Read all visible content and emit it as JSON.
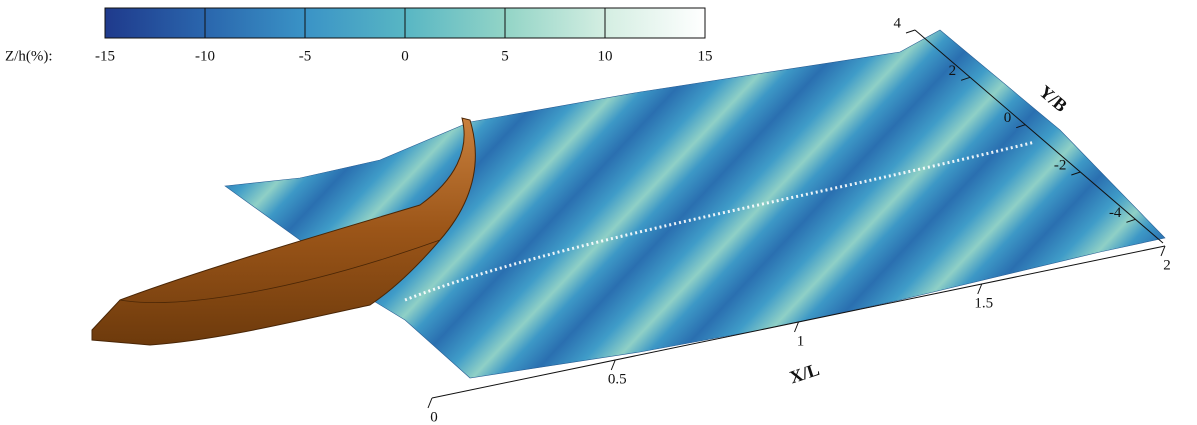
{
  "chart_data": {
    "type": "surface",
    "colorbar": {
      "label": "Z/h(%):",
      "lim": [
        -15,
        15
      ],
      "ticks": [
        -15,
        -10,
        -5,
        0,
        5,
        10,
        15
      ],
      "colormap": [
        "#1f3a8c",
        "#2a66ad",
        "#3a93c6",
        "#58b6c4",
        "#92d4c6",
        "#d4eee2",
        "#ffffff"
      ]
    },
    "xlabel": "X/L",
    "xlim": [
      0,
      2
    ],
    "xticks": [
      0,
      0.5,
      1,
      1.5,
      2
    ],
    "ylabel": "Y/B",
    "ylim": [
      -5,
      4
    ],
    "yticks": [
      4,
      2,
      0,
      -2,
      -4
    ]
  }
}
